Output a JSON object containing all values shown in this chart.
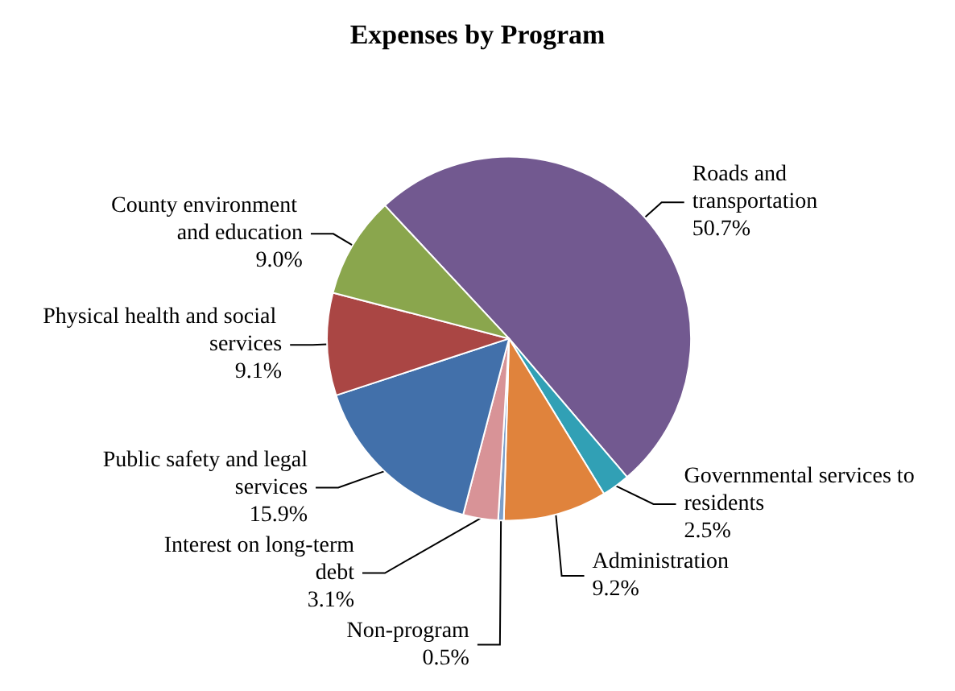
{
  "chart_data": {
    "type": "pie",
    "title": "Expenses by Program",
    "categories": [
      "Roads and transportation",
      "Governmental services to residents",
      "Administration",
      "Non-program",
      "Interest on long-term debt",
      "Public safety and legal services",
      "Physical health and social services",
      "County environment and education"
    ],
    "values": [
      50.7,
      2.5,
      9.2,
      0.5,
      3.1,
      15.9,
      9.1,
      9.0
    ],
    "value_labels": [
      "50.7%",
      "2.5%",
      "9.2%",
      "0.5%",
      "3.1%",
      "15.9%",
      "9.1%",
      "9.0%"
    ],
    "colors": [
      "#725990",
      "#31a0b5",
      "#e0833c",
      "#7d9fc9",
      "#d89397",
      "#4270aa",
      "#aa4644",
      "#8aa64d"
    ],
    "legend": false
  }
}
